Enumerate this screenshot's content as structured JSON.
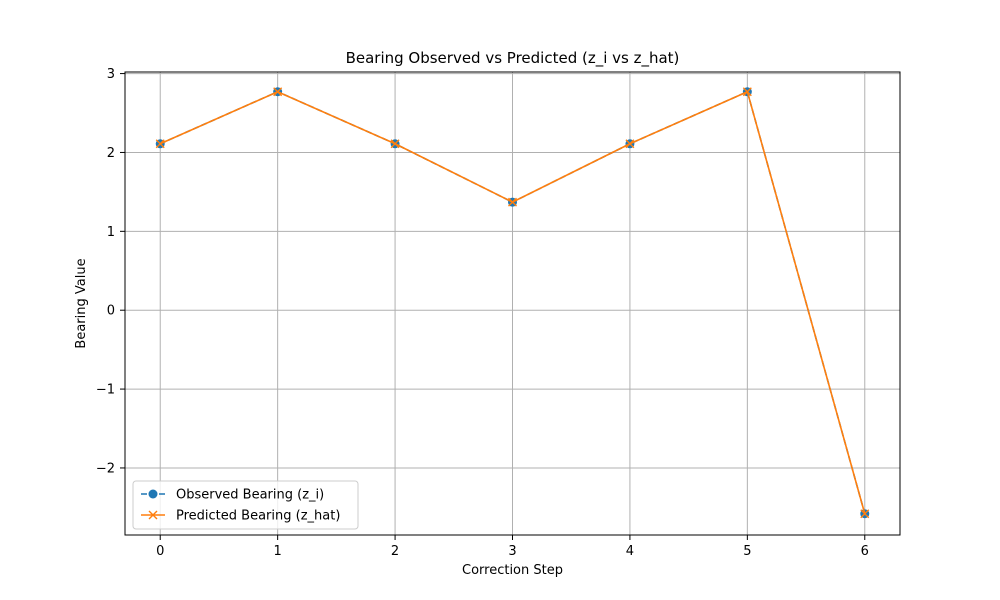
{
  "chart_data": {
    "type": "line",
    "title": "Bearing Observed vs Predicted (z_i vs z_hat)",
    "xlabel": "Correction Step",
    "ylabel": "Bearing Value",
    "x": [
      0,
      1,
      2,
      3,
      4,
      5,
      6
    ],
    "xlim": [
      -0.3,
      6.3
    ],
    "ylim": [
      -2.85,
      3.02
    ],
    "xticks": [
      0,
      1,
      2,
      3,
      4,
      5,
      6
    ],
    "yticks": [
      -2,
      -1,
      0,
      1,
      2,
      3
    ],
    "ytick_labels": [
      "−2",
      "−1",
      "0",
      "1",
      "2",
      "3"
    ],
    "grid": true,
    "legend_position": "lower-left",
    "series": [
      {
        "name": "Observed Bearing (z_i)",
        "values": [
          2.11,
          2.77,
          2.11,
          1.37,
          2.11,
          2.77,
          -2.58
        ],
        "color": "#1f77b4",
        "line_style": "dashed",
        "marker": "circle"
      },
      {
        "name": "Predicted Bearing (z_hat)",
        "values": [
          2.11,
          2.77,
          2.11,
          1.37,
          2.11,
          2.77,
          -2.58
        ],
        "color": "#ff7f0e",
        "line_style": "solid",
        "marker": "x"
      }
    ]
  }
}
